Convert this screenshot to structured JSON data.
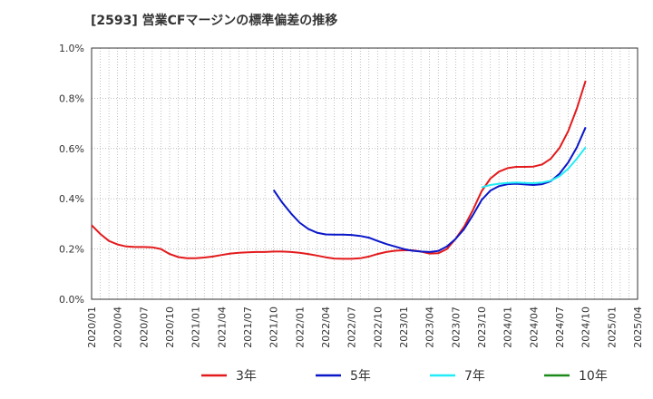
{
  "chart_data": {
    "type": "line",
    "title": "[2593]  営業CFマージンの標準偏差の推移",
    "xlabel": "",
    "ylabel": "",
    "ylim": [
      0,
      1.0
    ],
    "y_ticks": [
      "0.0%",
      "0.2%",
      "0.4%",
      "0.6%",
      "0.8%",
      "1.0%"
    ],
    "x_ticks": [
      "2020/01",
      "2020/04",
      "2020/07",
      "2020/10",
      "2021/01",
      "2021/04",
      "2021/07",
      "2021/10",
      "2022/01",
      "2022/04",
      "2022/07",
      "2022/10",
      "2023/01",
      "2023/04",
      "2023/07",
      "2023/10",
      "2024/01",
      "2024/04",
      "2024/07",
      "2024/10",
      "2025/01",
      "2025/04"
    ],
    "grid": true,
    "legend_position": "bottom",
    "series": [
      {
        "name": "3年",
        "color": "#e31a1c",
        "points": [
          [
            "2020/01",
            0.295
          ],
          [
            "2020/02",
            0.26
          ],
          [
            "2020/03",
            0.232
          ],
          [
            "2020/04",
            0.218
          ],
          [
            "2020/05",
            0.21
          ],
          [
            "2020/06",
            0.208
          ],
          [
            "2020/07",
            0.208
          ],
          [
            "2020/08",
            0.207
          ],
          [
            "2020/09",
            0.2
          ],
          [
            "2020/10",
            0.18
          ],
          [
            "2020/11",
            0.168
          ],
          [
            "2020/12",
            0.163
          ],
          [
            "2021/01",
            0.163
          ],
          [
            "2021/02",
            0.166
          ],
          [
            "2021/03",
            0.17
          ],
          [
            "2021/04",
            0.176
          ],
          [
            "2021/05",
            0.182
          ],
          [
            "2021/06",
            0.185
          ],
          [
            "2021/07",
            0.187
          ],
          [
            "2021/08",
            0.188
          ],
          [
            "2021/09",
            0.188
          ],
          [
            "2021/10",
            0.19
          ],
          [
            "2021/11",
            0.19
          ],
          [
            "2021/12",
            0.188
          ],
          [
            "2022/01",
            0.185
          ],
          [
            "2022/02",
            0.18
          ],
          [
            "2022/03",
            0.174
          ],
          [
            "2022/04",
            0.167
          ],
          [
            "2022/05",
            0.162
          ],
          [
            "2022/06",
            0.161
          ],
          [
            "2022/07",
            0.161
          ],
          [
            "2022/08",
            0.163
          ],
          [
            "2022/09",
            0.17
          ],
          [
            "2022/10",
            0.18
          ],
          [
            "2022/11",
            0.188
          ],
          [
            "2022/12",
            0.193
          ],
          [
            "2023/01",
            0.195
          ],
          [
            "2023/02",
            0.195
          ],
          [
            "2023/03",
            0.19
          ],
          [
            "2023/04",
            0.182
          ],
          [
            "2023/05",
            0.183
          ],
          [
            "2023/06",
            0.2
          ],
          [
            "2023/07",
            0.24
          ],
          [
            "2023/08",
            0.29
          ],
          [
            "2023/09",
            0.355
          ],
          [
            "2023/10",
            0.43
          ],
          [
            "2023/11",
            0.48
          ],
          [
            "2023/12",
            0.508
          ],
          [
            "2024/01",
            0.522
          ],
          [
            "2024/02",
            0.527
          ],
          [
            "2024/03",
            0.527
          ],
          [
            "2024/04",
            0.528
          ],
          [
            "2024/05",
            0.537
          ],
          [
            "2024/06",
            0.56
          ],
          [
            "2024/07",
            0.603
          ],
          [
            "2024/08",
            0.67
          ],
          [
            "2024/09",
            0.76
          ],
          [
            "2024/10",
            0.87
          ]
        ]
      },
      {
        "name": "5年",
        "color": "#0a17c9",
        "points": [
          [
            "2021/10",
            0.435
          ],
          [
            "2021/11",
            0.385
          ],
          [
            "2021/12",
            0.342
          ],
          [
            "2022/01",
            0.305
          ],
          [
            "2022/02",
            0.28
          ],
          [
            "2022/03",
            0.265
          ],
          [
            "2022/04",
            0.258
          ],
          [
            "2022/05",
            0.257
          ],
          [
            "2022/06",
            0.257
          ],
          [
            "2022/07",
            0.256
          ],
          [
            "2022/08",
            0.252
          ],
          [
            "2022/09",
            0.245
          ],
          [
            "2022/10",
            0.232
          ],
          [
            "2022/11",
            0.22
          ],
          [
            "2022/12",
            0.21
          ],
          [
            "2023/01",
            0.2
          ],
          [
            "2023/02",
            0.193
          ],
          [
            "2023/03",
            0.19
          ],
          [
            "2023/04",
            0.188
          ],
          [
            "2023/05",
            0.192
          ],
          [
            "2023/06",
            0.21
          ],
          [
            "2023/07",
            0.24
          ],
          [
            "2023/08",
            0.28
          ],
          [
            "2023/09",
            0.335
          ],
          [
            "2023/10",
            0.395
          ],
          [
            "2023/11",
            0.432
          ],
          [
            "2023/12",
            0.45
          ],
          [
            "2024/01",
            0.458
          ],
          [
            "2024/02",
            0.46
          ],
          [
            "2024/03",
            0.457
          ],
          [
            "2024/04",
            0.455
          ],
          [
            "2024/05",
            0.458
          ],
          [
            "2024/06",
            0.47
          ],
          [
            "2024/07",
            0.5
          ],
          [
            "2024/08",
            0.545
          ],
          [
            "2024/09",
            0.605
          ],
          [
            "2024/10",
            0.685
          ]
        ]
      },
      {
        "name": "7年",
        "color": "#22ecf5",
        "points": [
          [
            "2023/10",
            0.445
          ],
          [
            "2023/11",
            0.455
          ],
          [
            "2023/12",
            0.46
          ],
          [
            "2024/01",
            0.463
          ],
          [
            "2024/02",
            0.465
          ],
          [
            "2024/03",
            0.463
          ],
          [
            "2024/04",
            0.462
          ],
          [
            "2024/05",
            0.465
          ],
          [
            "2024/06",
            0.472
          ],
          [
            "2024/07",
            0.49
          ],
          [
            "2024/08",
            0.52
          ],
          [
            "2024/09",
            0.56
          ],
          [
            "2024/10",
            0.605
          ]
        ]
      },
      {
        "name": "10年",
        "color": "#1b8a1b",
        "points": []
      }
    ]
  }
}
